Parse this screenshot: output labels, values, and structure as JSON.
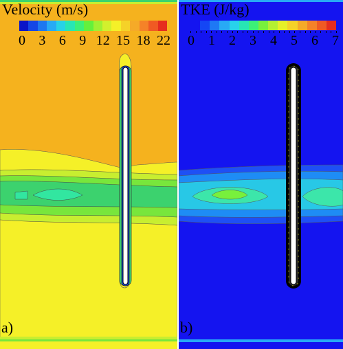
{
  "panels": [
    {
      "id": "a",
      "label": "a)",
      "title": "Velocity (m/s)",
      "tick_labels": [
        "0",
        "3",
        "6",
        "9",
        "12",
        "15",
        "18",
        "22"
      ],
      "colorbar_colors": [
        "#0a14c8",
        "#1446e6",
        "#1e78f0",
        "#28aaf5",
        "#28d2e6",
        "#28e6b4",
        "#3cf078",
        "#64f03c",
        "#a0f032",
        "#d2f02d",
        "#f5f028",
        "#f5d228",
        "#f5aa28",
        "#f58228",
        "#f05a23",
        "#e62d1e"
      ],
      "field": {
        "background": "#f5b21e",
        "band": "#f5f028",
        "wake": [
          "#c8ee30",
          "#78e63c",
          "#3cd26e",
          "#32e6a0"
        ]
      }
    },
    {
      "id": "b",
      "label": "b)",
      "title": "TKE (J/kg)",
      "tick_labels": [
        "0",
        "1",
        "2",
        "3",
        "4",
        "5",
        "6",
        "7"
      ],
      "colorbar_colors": [
        "#1414f0",
        "#1446f5",
        "#1e78f5",
        "#28aaf5",
        "#28d2eb",
        "#28e6b4",
        "#3cf078",
        "#78f03c",
        "#b4f032",
        "#e6f028",
        "#f5d228",
        "#f5aa28",
        "#f58228",
        "#f05a23",
        "#e62d1e"
      ],
      "field": {
        "background": "#1414f0",
        "band": [
          "#1e50f5",
          "#1e8cf5",
          "#28c8e6",
          "#3ce6aa"
        ]
      }
    }
  ]
}
